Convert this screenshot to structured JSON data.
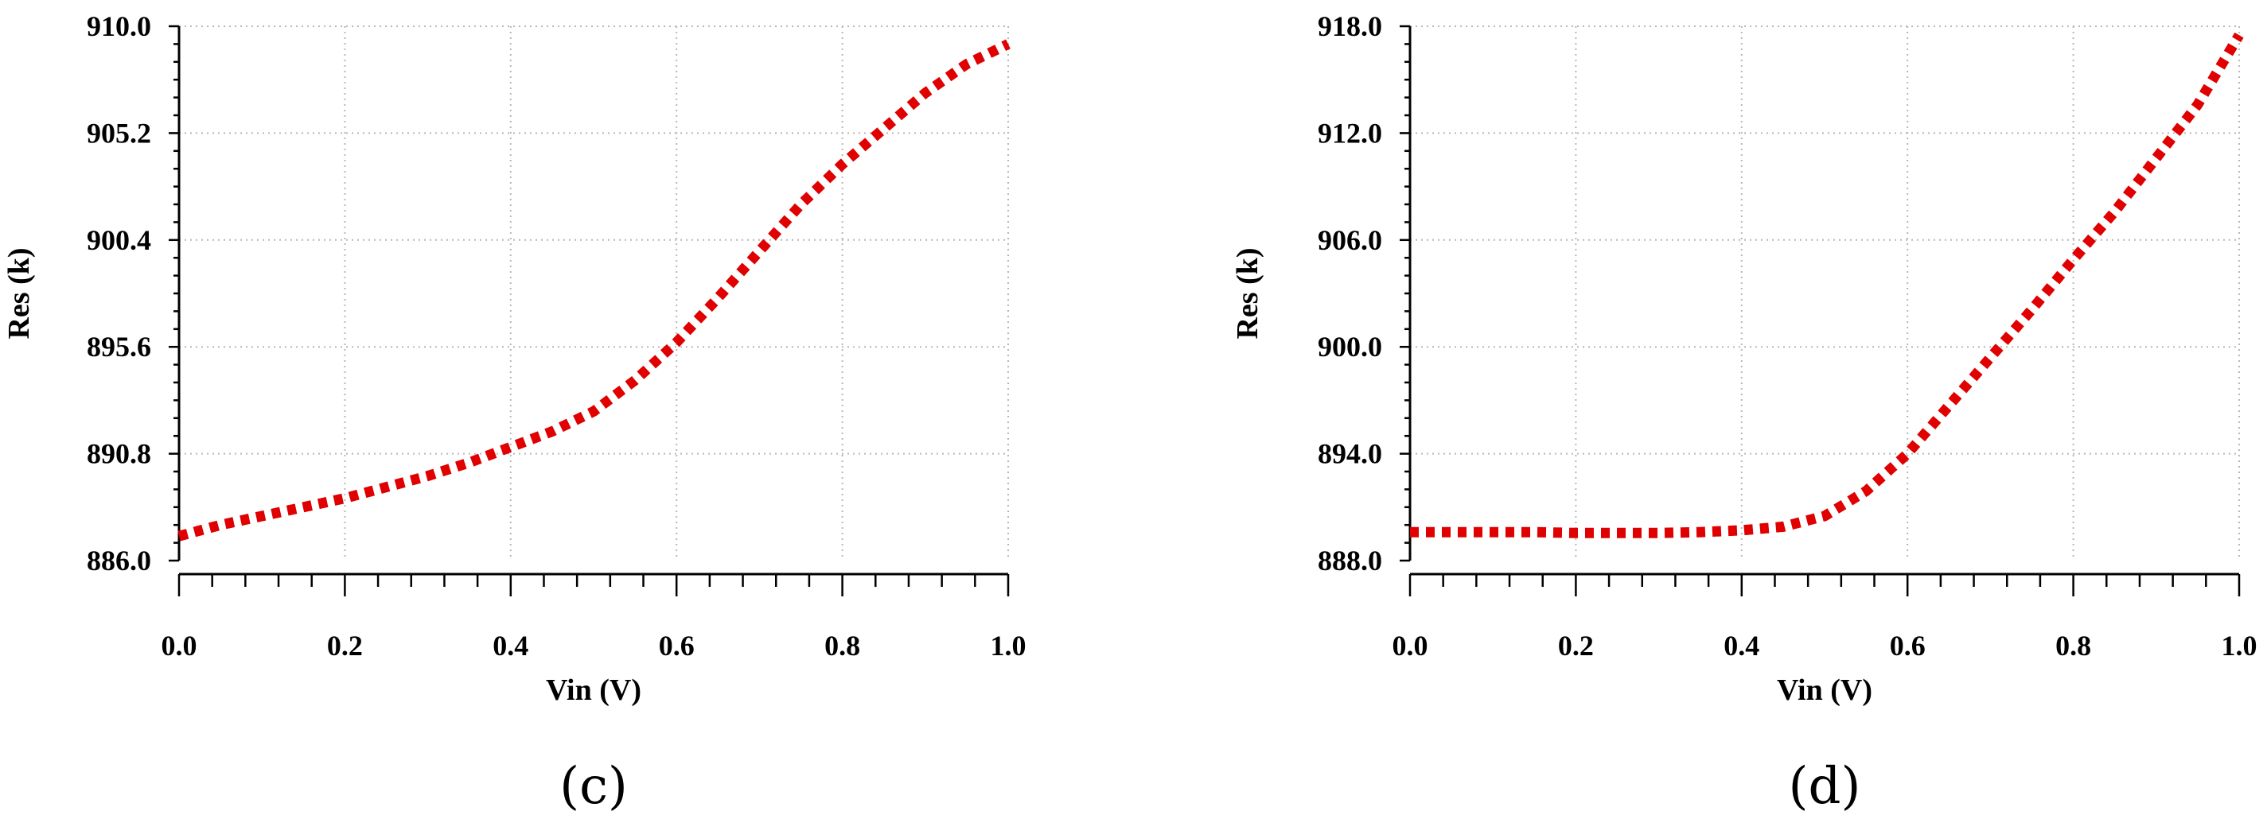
{
  "chart_data": [
    {
      "type": "line",
      "panel_label": "(c)",
      "xlabel": "Vin (V)",
      "ylabel": "Res (k)",
      "xlim": [
        0.0,
        1.0
      ],
      "ylim": [
        886.0,
        910.0
      ],
      "x_ticks": [
        "0.0",
        "0.2",
        "0.4",
        "0.6",
        "0.8",
        "1.0"
      ],
      "y_ticks": [
        "886.0",
        "890.8",
        "895.6",
        "900.4",
        "905.2",
        "910.0"
      ],
      "grid": true,
      "line_style": "dotted",
      "series": [
        {
          "color": "#e00000",
          "x": [
            0.0,
            0.05,
            0.1,
            0.15,
            0.2,
            0.25,
            0.3,
            0.35,
            0.4,
            0.45,
            0.5,
            0.55,
            0.6,
            0.65,
            0.7,
            0.75,
            0.8,
            0.85,
            0.9,
            0.95,
            1.0
          ],
          "y": [
            887.1,
            887.6,
            888.0,
            888.4,
            888.8,
            889.3,
            889.8,
            890.4,
            891.1,
            891.8,
            892.7,
            894.1,
            895.8,
            897.8,
            899.9,
            902.0,
            903.8,
            905.4,
            907.0,
            908.3,
            909.2
          ]
        }
      ]
    },
    {
      "type": "line",
      "panel_label": "(d)",
      "xlabel": "Vin (V)",
      "ylabel": "Res (k)",
      "xlim": [
        0.0,
        1.0
      ],
      "ylim": [
        888.0,
        918.0
      ],
      "x_ticks": [
        "0.0",
        "0.2",
        "0.4",
        "0.6",
        "0.8",
        "1.0"
      ],
      "y_ticks": [
        "888.0",
        "894.0",
        "900.0",
        "906.0",
        "912.0",
        "918.0"
      ],
      "grid": true,
      "line_style": "dotted",
      "series": [
        {
          "color": "#e00000",
          "x": [
            0.0,
            0.05,
            0.1,
            0.15,
            0.2,
            0.25,
            0.3,
            0.35,
            0.4,
            0.45,
            0.5,
            0.55,
            0.6,
            0.65,
            0.7,
            0.75,
            0.8,
            0.85,
            0.9,
            0.95,
            1.0
          ],
          "y": [
            889.6,
            889.6,
            889.6,
            889.6,
            889.55,
            889.55,
            889.55,
            889.6,
            889.7,
            889.9,
            890.5,
            891.9,
            894.0,
            896.7,
            899.4,
            902.1,
            904.9,
            907.6,
            910.6,
            913.6,
            917.5
          ]
        }
      ]
    }
  ]
}
